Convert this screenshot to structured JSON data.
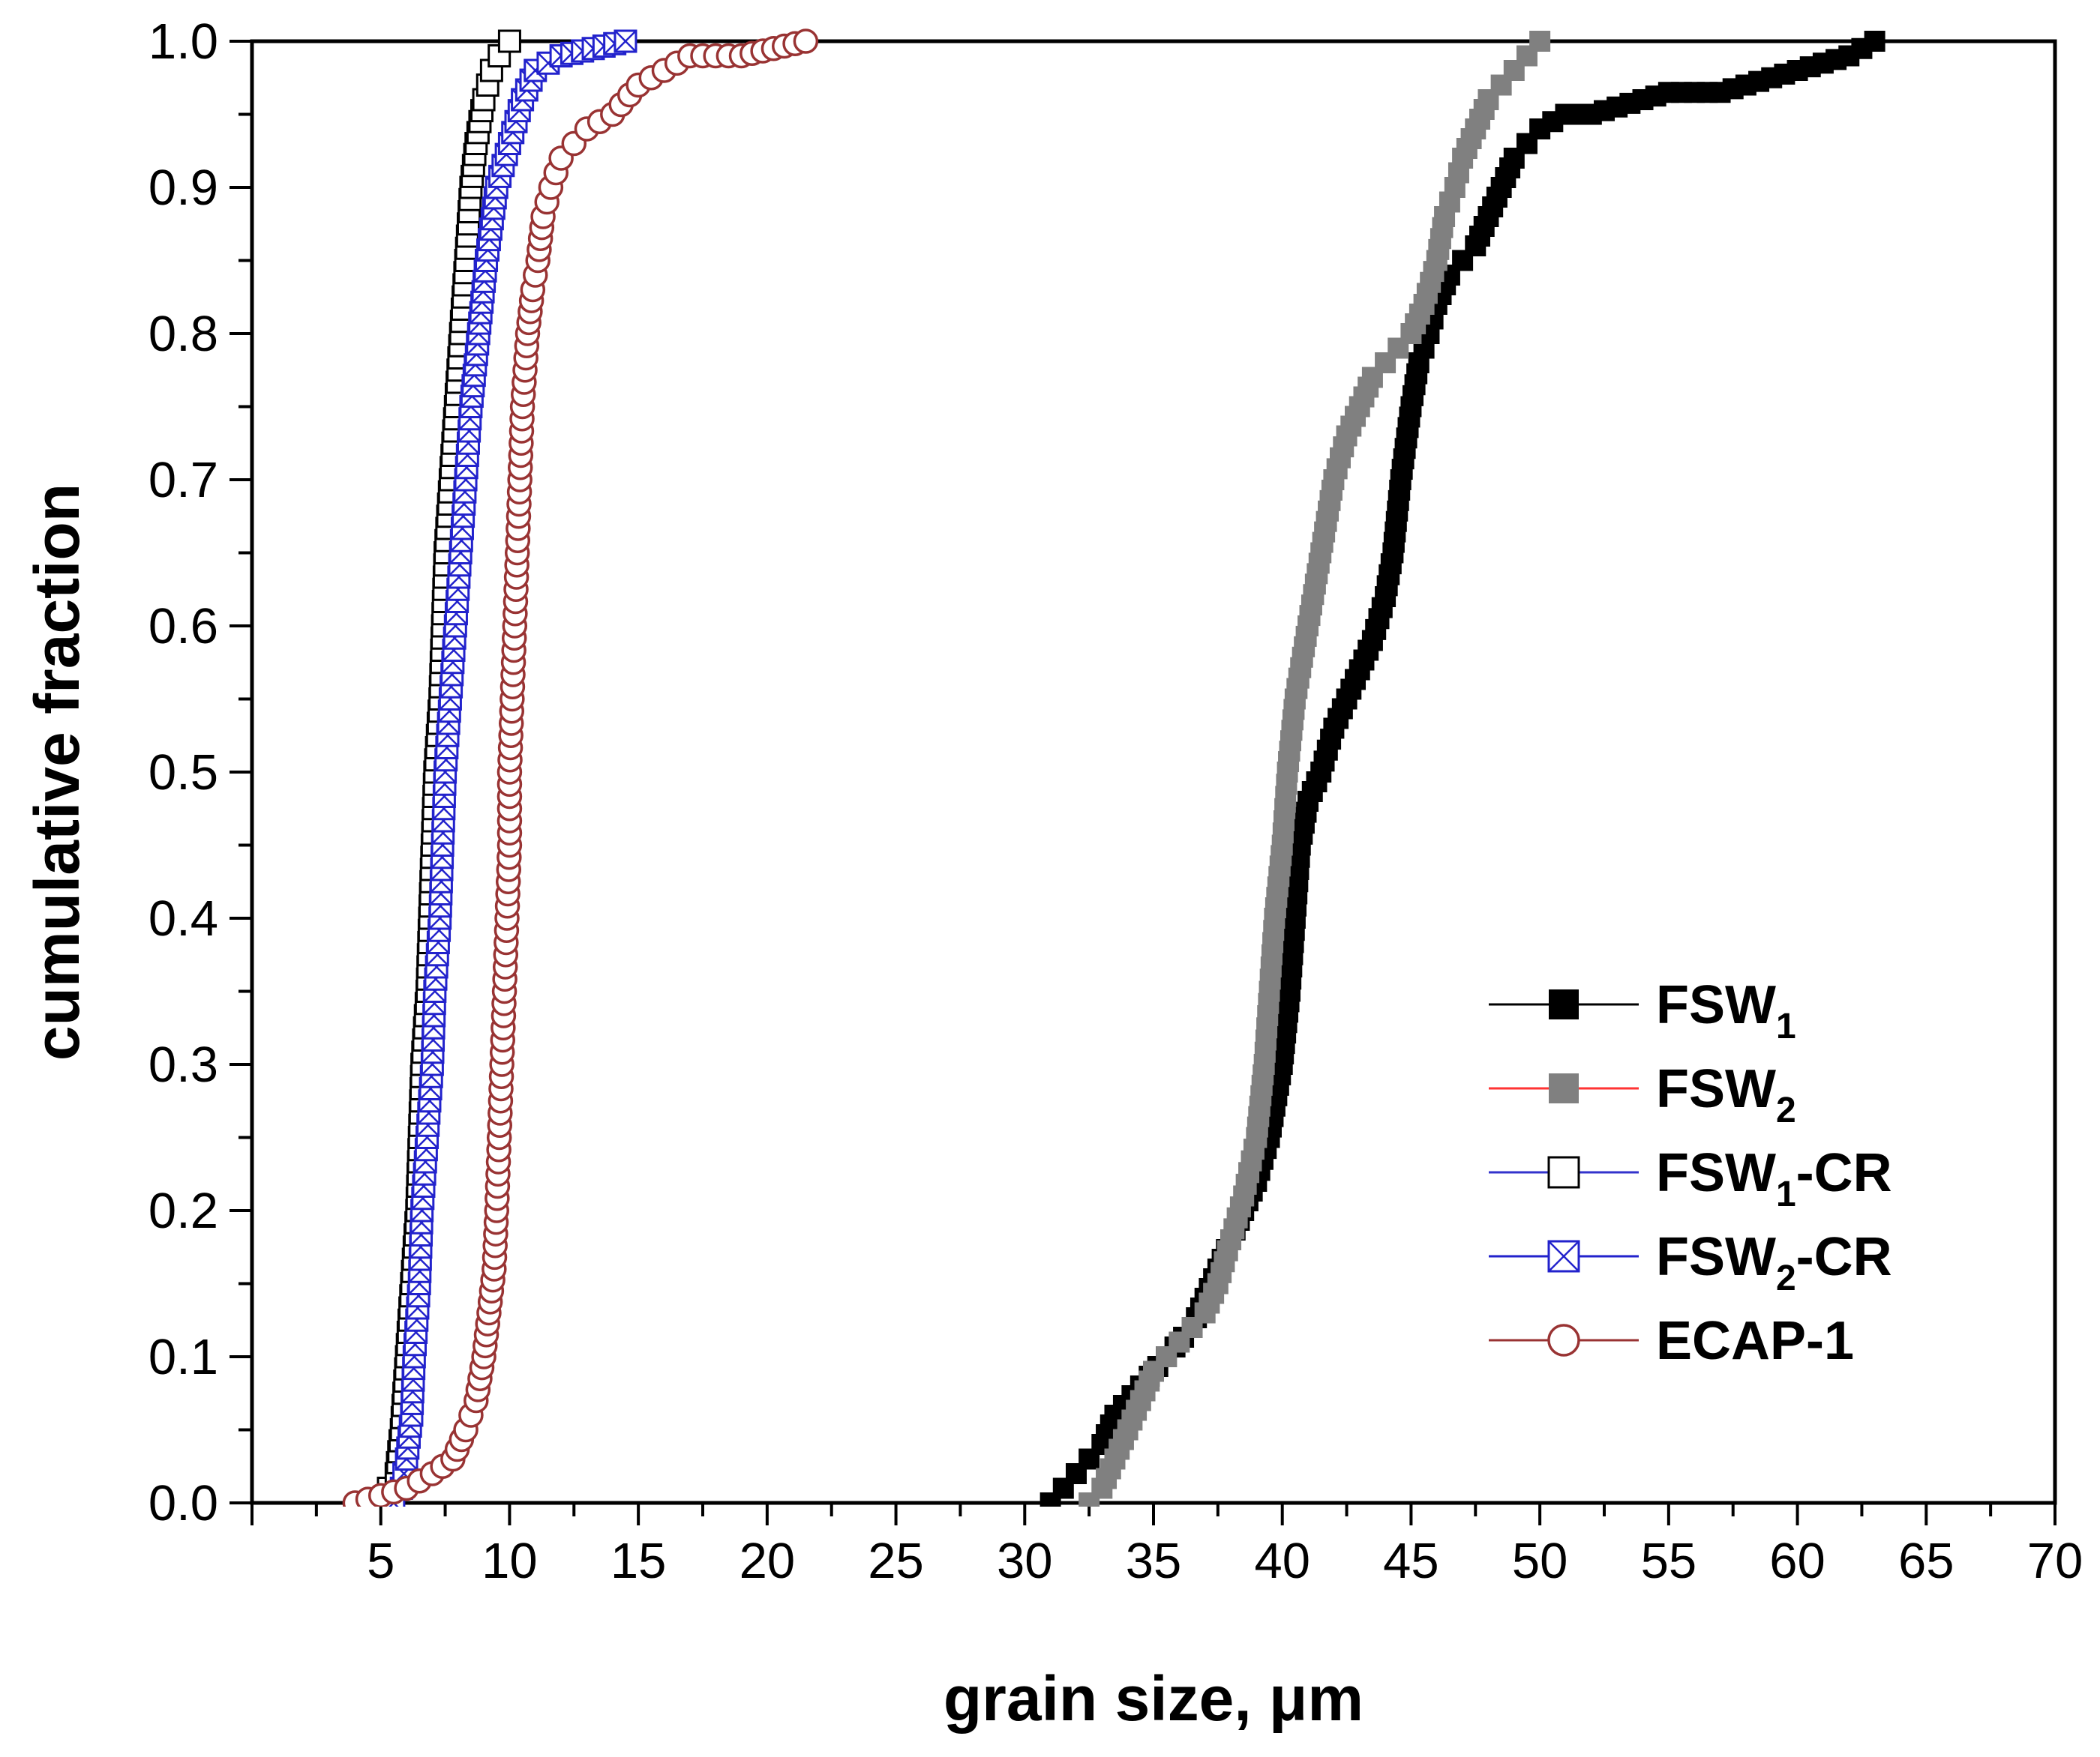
{
  "chart_data": {
    "type": "line",
    "title": "",
    "xlabel": "grain size, μm",
    "ylabel": "cumulative fraction",
    "xlim": [
      0,
      70
    ],
    "ylim": [
      0,
      1.0
    ],
    "xticks": [
      5,
      10,
      15,
      20,
      25,
      30,
      35,
      40,
      45,
      50,
      55,
      60,
      65,
      70
    ],
    "yticks": [
      "0.0",
      "0.1",
      "0.2",
      "0.3",
      "0.4",
      "0.5",
      "0.6",
      "0.7",
      "0.8",
      "0.9",
      "1.0"
    ],
    "legend_position": "bottom-right",
    "series": [
      {
        "name": "FSW",
        "subscript": "1",
        "suffix": "",
        "marker": "filled-square",
        "marker_color": "#000000",
        "line_color": "#000000",
        "points": [
          [
            31.0,
            0.0
          ],
          [
            31.5,
            0.01
          ],
          [
            32.0,
            0.02
          ],
          [
            32.5,
            0.03
          ],
          [
            33.0,
            0.04
          ],
          [
            33.5,
            0.06
          ],
          [
            34.5,
            0.08
          ],
          [
            35.5,
            0.1
          ],
          [
            36.5,
            0.12
          ],
          [
            37.0,
            0.14
          ],
          [
            37.5,
            0.16
          ],
          [
            38.5,
            0.2
          ],
          [
            39.0,
            0.22
          ],
          [
            39.5,
            0.25
          ],
          [
            40.0,
            0.3
          ],
          [
            40.3,
            0.35
          ],
          [
            40.5,
            0.4
          ],
          [
            40.7,
            0.45
          ],
          [
            41.0,
            0.48
          ],
          [
            41.5,
            0.5
          ],
          [
            42.0,
            0.53
          ],
          [
            42.5,
            0.55
          ],
          [
            43.0,
            0.57
          ],
          [
            43.5,
            0.59
          ],
          [
            44.0,
            0.62
          ],
          [
            44.3,
            0.65
          ],
          [
            44.6,
            0.7
          ],
          [
            45.0,
            0.75
          ],
          [
            45.3,
            0.78
          ],
          [
            45.7,
            0.8
          ],
          [
            46.0,
            0.82
          ],
          [
            46.5,
            0.84
          ],
          [
            47.0,
            0.85
          ],
          [
            47.5,
            0.86
          ],
          [
            48.0,
            0.88
          ],
          [
            48.5,
            0.9
          ],
          [
            49.0,
            0.92
          ],
          [
            49.5,
            0.93
          ],
          [
            50.0,
            0.94
          ],
          [
            51.0,
            0.95
          ],
          [
            52.0,
            0.95
          ],
          [
            53.0,
            0.955
          ],
          [
            54.0,
            0.96
          ],
          [
            55.0,
            0.965
          ],
          [
            56.0,
            0.965
          ],
          [
            57.0,
            0.965
          ],
          [
            58.0,
            0.97
          ],
          [
            59.0,
            0.975
          ],
          [
            60.0,
            0.98
          ],
          [
            61.0,
            0.985
          ],
          [
            62.0,
            0.99
          ],
          [
            63.0,
            1.0
          ]
        ]
      },
      {
        "name": "FSW",
        "subscript": "2",
        "suffix": "",
        "marker": "filled-square",
        "marker_color": "#808080",
        "line_color": "#ff3333",
        "points": [
          [
            32.5,
            0.0
          ],
          [
            33.0,
            0.01
          ],
          [
            33.5,
            0.03
          ],
          [
            34.0,
            0.05
          ],
          [
            34.5,
            0.07
          ],
          [
            35.0,
            0.09
          ],
          [
            35.5,
            0.1
          ],
          [
            36.0,
            0.11
          ],
          [
            36.5,
            0.12
          ],
          [
            37.0,
            0.13
          ],
          [
            37.5,
            0.15
          ],
          [
            38.0,
            0.18
          ],
          [
            38.5,
            0.21
          ],
          [
            39.0,
            0.25
          ],
          [
            39.3,
            0.3
          ],
          [
            39.5,
            0.35
          ],
          [
            39.7,
            0.4
          ],
          [
            40.0,
            0.45
          ],
          [
            40.2,
            0.5
          ],
          [
            40.5,
            0.55
          ],
          [
            41.0,
            0.6
          ],
          [
            41.5,
            0.65
          ],
          [
            42.0,
            0.7
          ],
          [
            42.5,
            0.73
          ],
          [
            43.0,
            0.75
          ],
          [
            43.5,
            0.77
          ],
          [
            44.0,
            0.78
          ],
          [
            44.5,
            0.79
          ],
          [
            45.0,
            0.8
          ],
          [
            45.5,
            0.82
          ],
          [
            46.0,
            0.85
          ],
          [
            46.3,
            0.88
          ],
          [
            46.7,
            0.9
          ],
          [
            47.0,
            0.92
          ],
          [
            47.5,
            0.94
          ],
          [
            48.0,
            0.96
          ],
          [
            48.5,
            0.97
          ],
          [
            49.0,
            0.98
          ],
          [
            49.5,
            0.99
          ],
          [
            50.0,
            1.0
          ]
        ]
      },
      {
        "name": "FSW",
        "subscript": "1",
        "suffix": "-CR",
        "marker": "open-square",
        "marker_color": "#000000",
        "line_color": "#3333cc",
        "points": [
          [
            5.0,
            0.0
          ],
          [
            5.3,
            0.01
          ],
          [
            5.6,
            0.02
          ],
          [
            5.8,
            0.05
          ],
          [
            6.0,
            0.1
          ],
          [
            6.2,
            0.15
          ],
          [
            6.4,
            0.2
          ],
          [
            6.5,
            0.25
          ],
          [
            6.6,
            0.3
          ],
          [
            6.8,
            0.35
          ],
          [
            6.9,
            0.4
          ],
          [
            7.0,
            0.45
          ],
          [
            7.1,
            0.5
          ],
          [
            7.3,
            0.55
          ],
          [
            7.4,
            0.6
          ],
          [
            7.5,
            0.65
          ],
          [
            7.7,
            0.7
          ],
          [
            7.9,
            0.75
          ],
          [
            8.1,
            0.8
          ],
          [
            8.3,
            0.85
          ],
          [
            8.5,
            0.9
          ],
          [
            8.7,
            0.93
          ],
          [
            9.0,
            0.96
          ],
          [
            9.3,
            0.98
          ],
          [
            9.6,
            0.99
          ],
          [
            10.0,
            1.0
          ]
        ]
      },
      {
        "name": "FSW",
        "subscript": "2",
        "suffix": "-CR",
        "marker": "crossed-square",
        "marker_color": "#2222cc",
        "line_color": "#2222cc",
        "points": [
          [
            5.5,
            0.0
          ],
          [
            5.8,
            0.01
          ],
          [
            6.0,
            0.03
          ],
          [
            6.2,
            0.06
          ],
          [
            6.3,
            0.1
          ],
          [
            6.5,
            0.15
          ],
          [
            6.6,
            0.2
          ],
          [
            6.8,
            0.25
          ],
          [
            7.0,
            0.3
          ],
          [
            7.1,
            0.35
          ],
          [
            7.3,
            0.4
          ],
          [
            7.4,
            0.45
          ],
          [
            7.5,
            0.5
          ],
          [
            7.7,
            0.55
          ],
          [
            7.9,
            0.6
          ],
          [
            8.1,
            0.65
          ],
          [
            8.3,
            0.7
          ],
          [
            8.5,
            0.75
          ],
          [
            8.8,
            0.8
          ],
          [
            9.1,
            0.85
          ],
          [
            9.5,
            0.9
          ],
          [
            10.0,
            0.93
          ],
          [
            10.5,
            0.96
          ],
          [
            11.0,
            0.98
          ],
          [
            12.0,
            0.99
          ],
          [
            14.5,
            1.0
          ]
        ]
      },
      {
        "name": "ECAP-1",
        "subscript": "",
        "suffix": "",
        "marker": "open-circle",
        "marker_color": "#993333",
        "line_color": "#993333",
        "points": [
          [
            4.0,
            0.0
          ],
          [
            5.0,
            0.005
          ],
          [
            6.0,
            0.01
          ],
          [
            7.0,
            0.02
          ],
          [
            7.8,
            0.03
          ],
          [
            8.3,
            0.05
          ],
          [
            8.7,
            0.07
          ],
          [
            9.0,
            0.1
          ],
          [
            9.2,
            0.13
          ],
          [
            9.4,
            0.16
          ],
          [
            9.5,
            0.2
          ],
          [
            9.6,
            0.25
          ],
          [
            9.7,
            0.3
          ],
          [
            9.8,
            0.35
          ],
          [
            9.9,
            0.4
          ],
          [
            10.0,
            0.45
          ],
          [
            10.0,
            0.5
          ],
          [
            10.1,
            0.55
          ],
          [
            10.2,
            0.6
          ],
          [
            10.3,
            0.65
          ],
          [
            10.4,
            0.7
          ],
          [
            10.5,
            0.75
          ],
          [
            10.7,
            0.8
          ],
          [
            10.9,
            0.83
          ],
          [
            11.1,
            0.85
          ],
          [
            11.3,
            0.88
          ],
          [
            11.6,
            0.9
          ],
          [
            12.0,
            0.92
          ],
          [
            12.5,
            0.93
          ],
          [
            13.0,
            0.94
          ],
          [
            14.0,
            0.95
          ],
          [
            15.0,
            0.97
          ],
          [
            16.0,
            0.98
          ],
          [
            17.0,
            0.99
          ],
          [
            19.0,
            0.99
          ],
          [
            21.5,
            1.0
          ]
        ]
      }
    ]
  }
}
